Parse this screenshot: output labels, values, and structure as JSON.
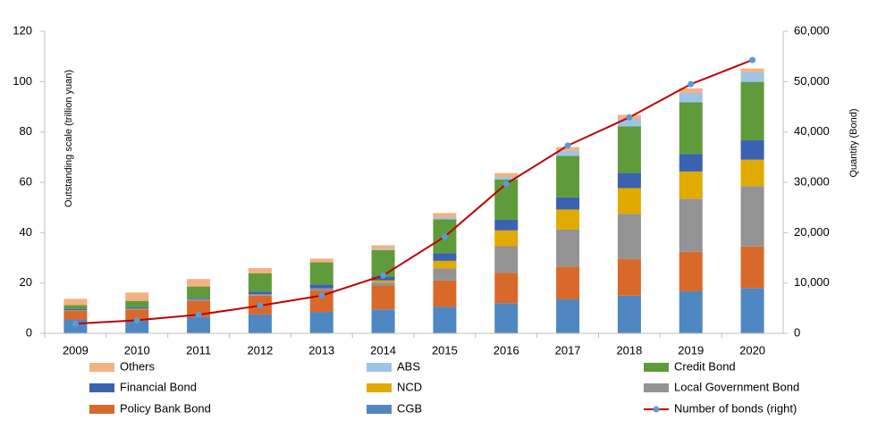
{
  "chart_data": {
    "type": "bar",
    "stacked": true,
    "y_label": "Outstanding scale (trillion yuan)",
    "y2_label": "Quantity (Bond)",
    "categories": [
      "2009",
      "2010",
      "2011",
      "2012",
      "2013",
      "2014",
      "2015",
      "2016",
      "2017",
      "2018",
      "2019",
      "2020"
    ],
    "ylim": [
      0,
      120
    ],
    "yticks": [
      0,
      20,
      40,
      60,
      80,
      100,
      120
    ],
    "y2lim": [
      0,
      60000
    ],
    "y2ticks": [
      0,
      {
        "value": 10000,
        "label": "10,000"
      },
      {
        "value": 20000,
        "label": "20,000"
      },
      {
        "value": 30000,
        "label": "30,000"
      },
      {
        "value": 40000,
        "label": "40,000"
      },
      {
        "value": 50000,
        "label": "50,000"
      },
      {
        "value": 60000,
        "label": "60,000"
      }
    ],
    "series": [
      {
        "name": "CGB",
        "color": "#4f87c2",
        "values": [
          5.5,
          5,
          6.5,
          7.5,
          8.5,
          9.5,
          10.5,
          12,
          13.5,
          15,
          16.7,
          18
        ]
      },
      {
        "name": "Policy Bank Bond",
        "color": "#d9692a",
        "values": [
          3.5,
          4.5,
          6.5,
          7.5,
          8.5,
          9.5,
          10.5,
          12,
          13,
          14.5,
          15.7,
          16.5
        ]
      },
      {
        "name": "Local Government Bond",
        "color": "#939393",
        "values": [
          0.2,
          0.4,
          0.6,
          0.6,
          0.9,
          1.2,
          4.8,
          10.6,
          14.7,
          18,
          21.1,
          24
        ]
      },
      {
        "name": "NCD",
        "color": "#e0aa00",
        "values": [
          0,
          0,
          0,
          0,
          0,
          0.8,
          3,
          6.3,
          8,
          10.2,
          10.8,
          10.5
        ]
      },
      {
        "name": "Financial Bond",
        "color": "#3a62b0",
        "values": [
          0.5,
          0.5,
          0.5,
          1,
          1.5,
          1.6,
          3,
          4.2,
          4.8,
          6,
          7,
          7.7
        ]
      },
      {
        "name": "Credit Bond",
        "color": "#5f9b3a",
        "values": [
          1.5,
          2.5,
          4.5,
          7.3,
          8.8,
          10.5,
          13.5,
          16,
          16.5,
          18.5,
          20.5,
          23.2
        ]
      },
      {
        "name": "ABS",
        "color": "#9dc3e6",
        "values": [
          0,
          0,
          0,
          0,
          0,
          0.4,
          0.8,
          1,
          2,
          3,
          3.7,
          3.8
        ]
      },
      {
        "name": "Others",
        "color": "#f4b183",
        "values": [
          2.5,
          3.3,
          3,
          2,
          1.5,
          1.5,
          1.7,
          1.6,
          1.5,
          1.6,
          1.8,
          1.5
        ]
      },
      {
        "name": "Number of bonds (right)",
        "type": "line",
        "axis": "y2",
        "color": "#c00000",
        "marker_color": "#5b9bd5",
        "values": [
          1900,
          2600,
          3700,
          5500,
          7500,
          11500,
          19200,
          29700,
          37300,
          42900,
          49500,
          54300
        ]
      }
    ]
  }
}
